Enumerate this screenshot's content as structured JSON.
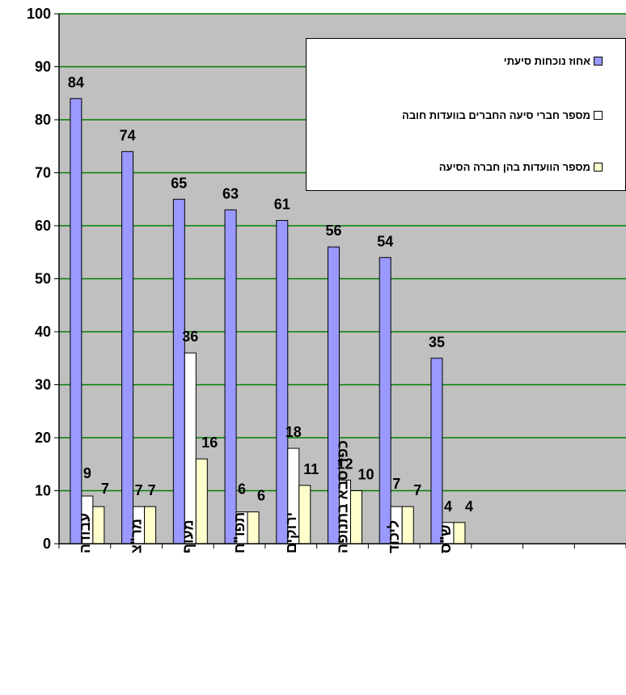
{
  "chart_data": {
    "type": "bar",
    "categories": [
      "עבודה",
      "מר\"צ",
      "מעוף",
      "תפו\"ח",
      "ירוקים",
      "כפר סבא בתנופה",
      "ליכוד",
      "ש\"ס"
    ],
    "series": [
      {
        "name": "אחוז נוכחות סיעתי",
        "values": [
          84,
          74,
          65,
          63,
          61,
          56,
          54,
          35
        ],
        "color": "#9999ff"
      },
      {
        "name": "מספר חברי סיעה החברים בוועדות חובה",
        "values": [
          9,
          7,
          36,
          6,
          18,
          12,
          7,
          4
        ],
        "color": "#ffffff"
      },
      {
        "name": "מספר הוועדות בהן חברה הסיעה",
        "values": [
          7,
          7,
          16,
          6,
          11,
          10,
          7,
          4
        ],
        "color": "#ffffcc"
      }
    ],
    "ylim": [
      0,
      100
    ],
    "yticks": [
      "0",
      "10",
      "20",
      "30",
      "40",
      "50",
      "60",
      "70",
      "80",
      "90",
      "100"
    ],
    "empty_slots": 3,
    "grid": true,
    "grid_color": "#008000",
    "plot_background": "#c0c0c0",
    "legend_position": "top-right",
    "title": "",
    "xlabel": "",
    "ylabel": ""
  }
}
